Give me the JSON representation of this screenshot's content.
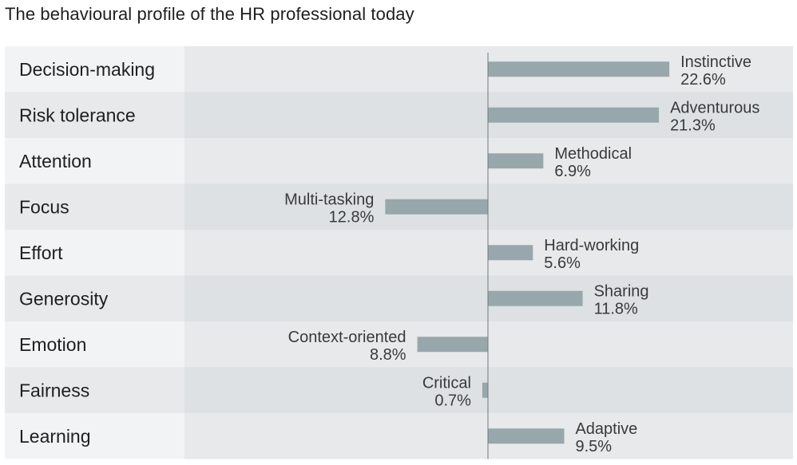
{
  "title": "The behavioural profile of the HR professional today",
  "colors": {
    "bar": "#97a7ab",
    "row_label_light": "#f2f3f4",
    "row_plot_light": "#e7e9ea",
    "row_label_dark": "#e7e9ea",
    "row_plot_dark": "#dde1e3",
    "axis": "#6f7b80",
    "text": "#1f1f1f"
  },
  "chart_data": {
    "type": "bar",
    "orientation": "horizontal",
    "title": "The behavioural profile of the HR professional today",
    "xlim": [
      -25,
      25
    ],
    "grid": false,
    "legend": "none",
    "rows": [
      {
        "category": "Decision-making",
        "label": "Instinctive",
        "value": 22.6,
        "value_text": "22.6%"
      },
      {
        "category": "Risk tolerance",
        "label": "Adventurous",
        "value": 21.3,
        "value_text": "21.3%"
      },
      {
        "category": "Attention",
        "label": "Methodical",
        "value": 6.9,
        "value_text": "6.9%"
      },
      {
        "category": "Focus",
        "label": "Multi-tasking",
        "value": -12.8,
        "value_text": "12.8%"
      },
      {
        "category": "Effort",
        "label": "Hard-working",
        "value": 5.6,
        "value_text": "5.6%"
      },
      {
        "category": "Generosity",
        "label": "Sharing",
        "value": 11.8,
        "value_text": "11.8%"
      },
      {
        "category": "Emotion",
        "label": "Context-oriented",
        "value": -8.8,
        "value_text": "8.8%"
      },
      {
        "category": "Fairness",
        "label": "Critical",
        "value": -0.7,
        "value_text": "0.7%"
      },
      {
        "category": "Learning",
        "label": "Adaptive",
        "value": 9.5,
        "value_text": "9.5%"
      }
    ]
  }
}
